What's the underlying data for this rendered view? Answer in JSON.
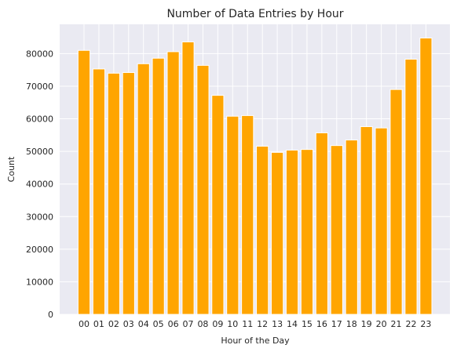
{
  "chart_data": {
    "type": "bar",
    "title": "Number of Data Entries by Hour",
    "xlabel": "Hour of the Day",
    "ylabel": "Count",
    "categories": [
      "00",
      "01",
      "02",
      "03",
      "04",
      "05",
      "06",
      "07",
      "08",
      "09",
      "10",
      "11",
      "12",
      "13",
      "14",
      "15",
      "16",
      "17",
      "18",
      "19",
      "20",
      "21",
      "22",
      "23"
    ],
    "values": [
      81000,
      75300,
      74000,
      74200,
      76900,
      78600,
      80600,
      83600,
      76400,
      67200,
      60800,
      61000,
      51600,
      49700,
      50400,
      50600,
      55700,
      51800,
      53500,
      57600,
      57200,
      69000,
      78300,
      84800
    ],
    "ylim": [
      0,
      89000
    ],
    "yticks": [
      0,
      10000,
      20000,
      30000,
      40000,
      50000,
      60000,
      70000,
      80000
    ],
    "ytick_labels": [
      "0",
      "10000",
      "20000",
      "30000",
      "40000",
      "50000",
      "60000",
      "70000",
      "80000"
    ],
    "grid": true,
    "colors": {
      "bar": "#ffa500",
      "background": "#eaeaf2",
      "grid": "#ffffff"
    }
  }
}
